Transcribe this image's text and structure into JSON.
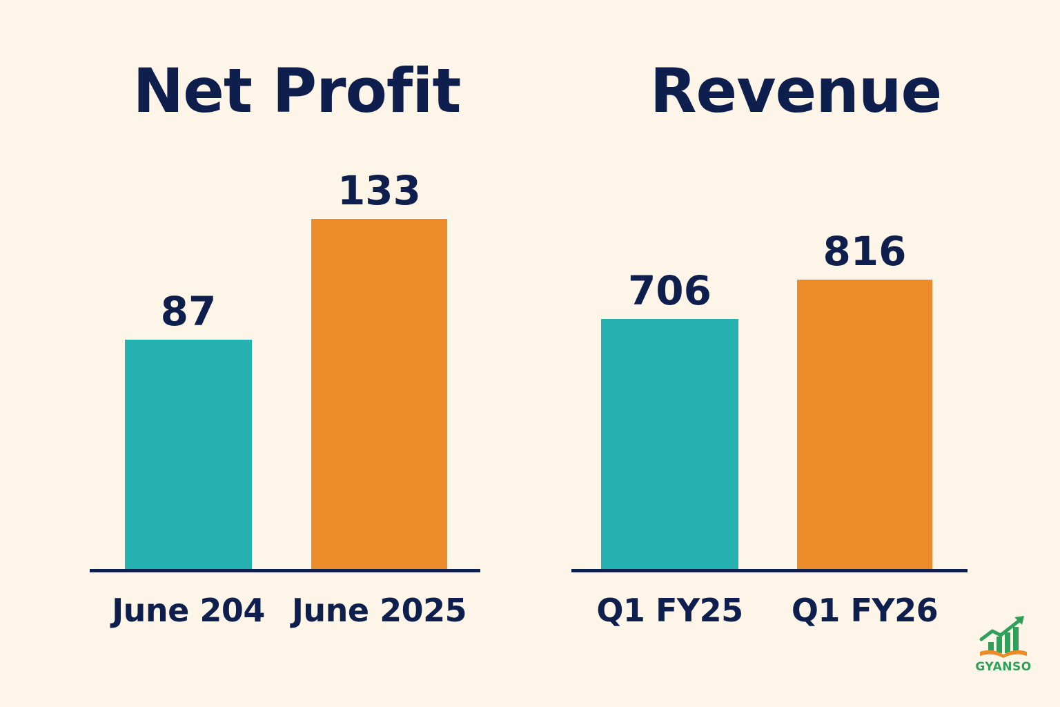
{
  "colors": {
    "background": "#fdf5e8",
    "text": "#0f1f4d",
    "series_before": "#25b1b0",
    "series_after": "#ec8b2a",
    "axis": "#0f1f4d",
    "logo_green": "#2fa05a",
    "logo_orange": "#ec8b2a"
  },
  "chart_data": [
    {
      "type": "bar",
      "title": "Net Profit",
      "categories": [
        "June 204",
        "June 2025"
      ],
      "values": [
        87,
        133
      ],
      "xlabel": "",
      "ylabel": "",
      "ylim": [
        0,
        152
      ],
      "grid": false,
      "data_labels": true
    },
    {
      "type": "bar",
      "title": "Revenue",
      "categories": [
        "Q1 FY25",
        "Q1 FY26"
      ],
      "values": [
        706,
        816
      ],
      "xlabel": "",
      "ylabel": "",
      "ylim": [
        0,
        1130
      ],
      "grid": false,
      "data_labels": true
    }
  ],
  "logo": {
    "icon": "growth-chart-book-icon",
    "text": "GYANSO"
  }
}
